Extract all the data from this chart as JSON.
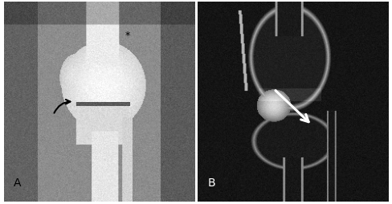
{
  "figsize": [
    4.89,
    2.55
  ],
  "dpi": 100,
  "outer_bg": "#ffffff",
  "panel_A": {
    "label": "A",
    "label_color": "#000000",
    "label_fontsize": 10
  },
  "panel_B": {
    "label": "B",
    "label_color": "#ffffff",
    "label_fontsize": 10
  }
}
